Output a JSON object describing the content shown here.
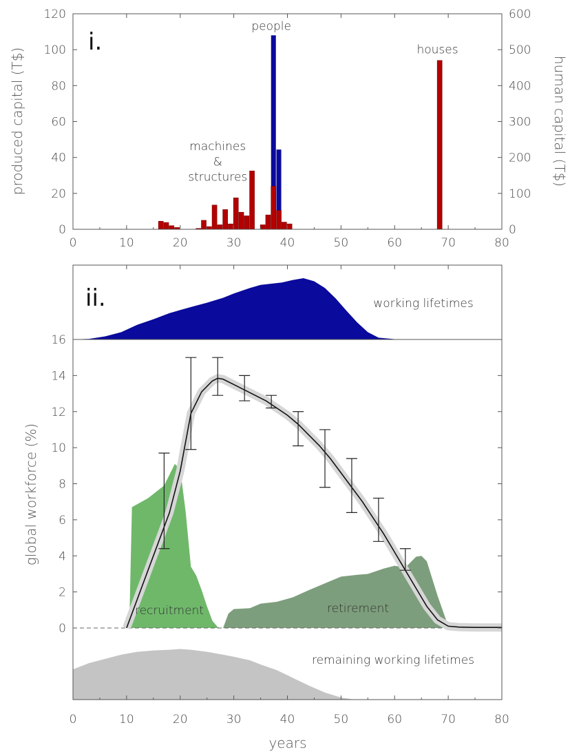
{
  "chart_data": [
    {
      "id": "panel-i",
      "type": "bar",
      "panel_label": "i.",
      "x_range": [
        0,
        80
      ],
      "x_ticks": [
        0,
        10,
        20,
        30,
        40,
        50,
        60,
        70,
        80
      ],
      "ylabel_left": "produced capital (T$)",
      "ylim_left": [
        0,
        120
      ],
      "y_ticks_left": [
        0,
        20,
        40,
        60,
        80,
        100,
        120
      ],
      "ylabel_right": "human capital (T$)",
      "ylim_right": [
        0,
        600
      ],
      "y_ticks_right": [
        0,
        100,
        200,
        300,
        400,
        500,
        600
      ],
      "grid": false,
      "annotations": [
        {
          "text": "people",
          "x": 37,
          "y": 111
        },
        {
          "text": "houses",
          "x": 68,
          "y": 98
        },
        {
          "text": "machines",
          "x": 27,
          "y": 44
        },
        {
          "text": "&",
          "x": 27,
          "y": 35.5
        },
        {
          "text": "structures",
          "x": 27,
          "y": 27
        }
      ],
      "series": [
        {
          "name": "human capital",
          "axis": "right",
          "color": "#0a0a9c",
          "bars": [
            {
              "x": 37,
              "value": 540
            },
            {
              "x": 38,
              "value": 222
            },
            {
              "x": 39,
              "value": 10
            }
          ]
        },
        {
          "name": "produced capital",
          "axis": "left",
          "color": "#b30000",
          "bars": [
            {
              "x": 16,
              "value": 4.5
            },
            {
              "x": 17,
              "value": 3.8
            },
            {
              "x": 18,
              "value": 2
            },
            {
              "x": 19,
              "value": 1
            },
            {
              "x": 23,
              "value": 0.5
            },
            {
              "x": 24,
              "value": 5
            },
            {
              "x": 25,
              "value": 1.5
            },
            {
              "x": 26,
              "value": 13.5
            },
            {
              "x": 27,
              "value": 2.5
            },
            {
              "x": 28,
              "value": 11
            },
            {
              "x": 29,
              "value": 3
            },
            {
              "x": 30,
              "value": 17.5
            },
            {
              "x": 31,
              "value": 9.5
            },
            {
              "x": 32,
              "value": 7.5
            },
            {
              "x": 33,
              "value": 32.5
            },
            {
              "x": 35,
              "value": 2.5
            },
            {
              "x": 36,
              "value": 8
            },
            {
              "x": 37,
              "value": 24
            },
            {
              "x": 38,
              "value": 10.5
            },
            {
              "x": 39,
              "value": 4
            },
            {
              "x": 40,
              "value": 3
            },
            {
              "x": 68,
              "value": 94
            }
          ]
        }
      ]
    },
    {
      "id": "panel-ii",
      "type": "area",
      "panel_label": "ii.",
      "x_range": [
        0,
        80
      ],
      "x_ticks": [
        0,
        10,
        20,
        30,
        40,
        50,
        60,
        70,
        80
      ],
      "xlabel": "years",
      "ylabel": "global workforce (%)",
      "ylim": [
        0,
        16
      ],
      "y_ticks": [
        0,
        2,
        4,
        6,
        8,
        10,
        12,
        14,
        16
      ],
      "grid": false,
      "inset_top": {
        "name": "working lifetimes",
        "color": "#0a0a9c",
        "ylim": [
          0,
          1
        ],
        "x": [
          0,
          3,
          6,
          9,
          12,
          15,
          18,
          20,
          22,
          25,
          28,
          30,
          33,
          35,
          37,
          39,
          41,
          43,
          45,
          47,
          49,
          51,
          53,
          55,
          57,
          60,
          65,
          70,
          75,
          80
        ],
        "values": [
          0,
          0.01,
          0.05,
          0.12,
          0.24,
          0.33,
          0.43,
          0.48,
          0.53,
          0.6,
          0.68,
          0.75,
          0.84,
          0.89,
          0.91,
          0.93,
          0.97,
          1.0,
          0.95,
          0.84,
          0.67,
          0.47,
          0.28,
          0.12,
          0.03,
          0.005,
          0.002,
          0.001,
          0.001,
          0
        ]
      },
      "inset_bottom": {
        "name": "remaining working lifetimes",
        "color": "#c4c4c4",
        "ylim": [
          0,
          1
        ],
        "x": [
          0,
          3,
          6,
          9,
          12,
          15,
          18,
          20,
          22,
          25,
          28,
          30,
          33,
          35,
          38,
          41,
          44,
          47,
          50,
          52,
          54,
          56,
          60,
          80
        ],
        "values": [
          0.43,
          0.52,
          0.58,
          0.64,
          0.68,
          0.7,
          0.71,
          0.72,
          0.71,
          0.68,
          0.64,
          0.61,
          0.56,
          0.5,
          0.42,
          0.31,
          0.2,
          0.1,
          0.03,
          0.005,
          0,
          0,
          0,
          0
        ]
      },
      "series": [
        {
          "name": "recruitment",
          "kind": "area",
          "color": "#6fb86a",
          "x": [
            10.5,
            11,
            14,
            17,
            19,
            20,
            21,
            22,
            23,
            24,
            25,
            26,
            27,
            27.5
          ],
          "values": [
            0,
            6.7,
            7.2,
            7.9,
            9.1,
            8.8,
            6.5,
            3.4,
            2.9,
            2.1,
            1.2,
            0.4,
            0.05,
            0
          ]
        },
        {
          "name": "retirement",
          "kind": "area",
          "color": "#7d9e7c",
          "x": [
            28,
            29,
            30,
            33,
            35,
            38,
            41,
            44,
            48,
            50,
            53,
            55,
            58,
            60,
            62,
            64,
            65,
            66,
            68,
            70,
            71
          ],
          "values": [
            0,
            0.8,
            1.05,
            1.1,
            1.35,
            1.45,
            1.7,
            2.1,
            2.6,
            2.85,
            2.95,
            3.0,
            3.3,
            3.45,
            3.35,
            3.95,
            4.0,
            3.7,
            1.8,
            0.1,
            0
          ]
        },
        {
          "name": "fit",
          "kind": "line",
          "color": "#111111",
          "x": [
            10,
            12,
            14,
            16,
            18,
            20,
            22,
            24,
            26,
            27,
            28,
            30,
            32,
            34,
            36,
            38,
            40,
            42,
            44,
            46,
            48,
            50,
            52,
            54,
            56,
            58,
            60,
            62,
            64,
            66,
            68,
            70,
            72,
            75,
            80
          ],
          "values": [
            0,
            1.6,
            3.2,
            4.8,
            6.4,
            8.7,
            11.9,
            13.1,
            13.7,
            13.85,
            13.8,
            13.5,
            13.2,
            12.9,
            12.6,
            12.2,
            11.8,
            11.3,
            10.7,
            10.1,
            9.4,
            8.6,
            7.8,
            7.0,
            6.1,
            5.2,
            4.2,
            3.2,
            2.2,
            1.2,
            0.45,
            0.1,
            0.05,
            0.03,
            0.03
          ]
        },
        {
          "name": "observed",
          "kind": "errorbar",
          "color": "#222222",
          "points": [
            {
              "x": 17,
              "low": 4.4,
              "high": 9.7
            },
            {
              "x": 22,
              "low": 9.9,
              "high": 15.0
            },
            {
              "x": 27,
              "low": 12.9,
              "high": 15.0
            },
            {
              "x": 32,
              "low": 12.6,
              "high": 14.0
            },
            {
              "x": 37,
              "low": 12.2,
              "high": 12.9
            },
            {
              "x": 42,
              "low": 10.1,
              "high": 12.0
            },
            {
              "x": 47,
              "low": 7.8,
              "high": 11.0
            },
            {
              "x": 52,
              "low": 6.4,
              "high": 9.4
            },
            {
              "x": 57,
              "low": 4.8,
              "high": 7.2
            },
            {
              "x": 62,
              "low": 3.2,
              "high": 4.4
            }
          ]
        }
      ]
    }
  ]
}
